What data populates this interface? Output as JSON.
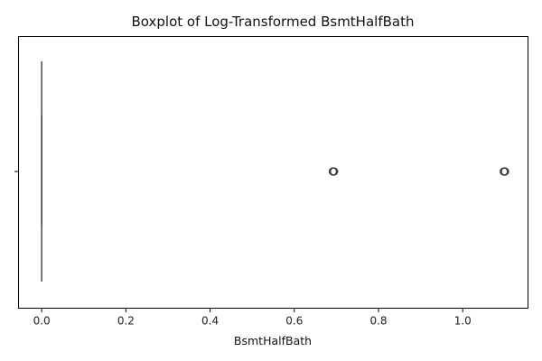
{
  "chart_data": {
    "type": "boxplot",
    "title": "Boxplot of Log-Transformed BsmtHalfBath",
    "xlabel": "BsmtHalfBath",
    "ylabel": "",
    "xlim": [
      -0.055,
      1.155
    ],
    "x_ticks": [
      0.0,
      0.2,
      0.4,
      0.6,
      0.8,
      1.0
    ],
    "x_tick_labels": [
      "0.0",
      "0.2",
      "0.4",
      "0.6",
      "0.8",
      "1.0"
    ],
    "orientation": "horizontal",
    "grid": false,
    "legend": "none",
    "box": {
      "q1": 0.0,
      "median": 0.0,
      "q3": 0.0,
      "whisker_low": 0.0,
      "whisker_high": 0.0
    },
    "outliers": [
      0.693,
      1.099
    ],
    "colors": {
      "box_line": "#3d3d3d",
      "outlier_edge": "#3d3d3d",
      "axis": "#000000"
    }
  }
}
